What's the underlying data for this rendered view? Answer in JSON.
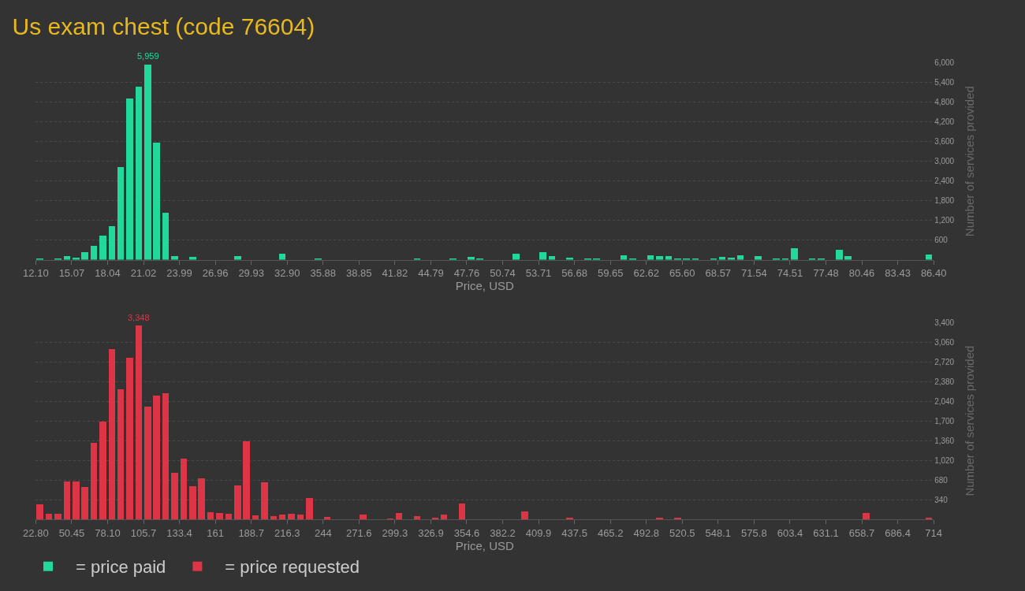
{
  "chart_data": [
    {
      "type": "histogram",
      "title": "Us exam chest (code 76604)",
      "xlabel": "Price, USD",
      "ylabel": "Number of services provided",
      "grid": "y",
      "legend": "bottom left",
      "bins": [
        12.1,
        12.843,
        13.586,
        14.329,
        15.072,
        15.815,
        16.558,
        17.301,
        18.044,
        18.787,
        19.53,
        20.273,
        21.016,
        21.759,
        22.502,
        23.245,
        23.988,
        24.731,
        25.474,
        26.217,
        26.96,
        27.703,
        28.446,
        29.189,
        29.932,
        30.675,
        31.418,
        32.161,
        32.904,
        33.647,
        34.39,
        35.133,
        35.876,
        36.619,
        37.362,
        38.105,
        38.848,
        39.591,
        40.334,
        41.077,
        41.82,
        42.563,
        43.306,
        44.049,
        44.792,
        45.535,
        46.278,
        47.021,
        47.764,
        48.507,
        49.25,
        49.993,
        50.736,
        51.479,
        52.222,
        52.965,
        53.708,
        54.451,
        55.194,
        55.937,
        56.68,
        57.423,
        58.166,
        58.909,
        59.652,
        60.395,
        61.138,
        61.881,
        62.624,
        63.367,
        64.11,
        64.853,
        65.596,
        66.339,
        67.082,
        67.825,
        68.568,
        69.311,
        70.054,
        70.797,
        71.54,
        72.283,
        73.026,
        73.769,
        74.512,
        75.255,
        75.998,
        76.741,
        77.484,
        78.227,
        78.97,
        79.713,
        80.456,
        81.199,
        81.942,
        82.685,
        83.428,
        84.171,
        84.914,
        85.657,
        86.4
      ],
      "series": [
        {
          "name": "= price paid",
          "color": "#20d99a",
          "values": [
            20,
            0,
            24,
            120,
            72,
            240,
            432,
            744,
            1032,
            2832,
            4920,
            5280,
            5959,
            3576,
            1440,
            120,
            0,
            96,
            0,
            0,
            0,
            0,
            120,
            0,
            0,
            0,
            0,
            192,
            0,
            0,
            0,
            48,
            0,
            0,
            0,
            0,
            0,
            0,
            0,
            0,
            0,
            0,
            24,
            0,
            0,
            0,
            24,
            0,
            96,
            24,
            0,
            0,
            0,
            192,
            0,
            0,
            240,
            120,
            0,
            72,
            0,
            24,
            24,
            0,
            0,
            144,
            24,
            0,
            144,
            120,
            120,
            24,
            48,
            24,
            0,
            48,
            96,
            72,
            144,
            0,
            120,
            0,
            24,
            48,
            360,
            0,
            48,
            24,
            0,
            312,
            120,
            0,
            0,
            0,
            0,
            0,
            0,
            0,
            0,
            168
          ],
          "value_labels": [
            null,
            null,
            null,
            null,
            null,
            null,
            null,
            null,
            null,
            null,
            null,
            null,
            "5,959",
            null,
            null,
            null,
            null,
            null,
            null,
            null,
            null,
            null,
            null,
            null,
            null,
            null,
            null,
            null,
            null,
            null,
            null,
            null,
            null,
            null,
            null,
            null,
            null,
            null,
            null,
            null,
            null,
            null,
            null,
            null,
            null,
            null,
            null,
            null,
            null,
            null,
            null,
            null,
            null,
            null,
            null,
            null,
            null,
            null,
            null,
            null,
            null,
            null,
            null,
            null,
            null,
            null,
            null,
            null,
            null,
            null,
            null,
            null,
            null,
            null,
            null,
            null,
            null,
            null,
            null,
            null,
            null,
            null,
            null,
            null,
            null,
            null,
            null,
            null,
            null,
            null,
            null,
            null,
            null,
            null,
            null,
            null,
            null,
            null,
            null,
            null
          ]
        }
      ],
      "xlim": [
        12.1,
        86.4
      ],
      "xticks": [
        {
          "value": 12.1,
          "label": "12.10"
        },
        {
          "value": 15.072,
          "label": "15.07"
        },
        {
          "value": 18.044,
          "label": "18.04"
        },
        {
          "value": 21.016,
          "label": "21.02"
        },
        {
          "value": 23.988,
          "label": "23.99"
        },
        {
          "value": 26.96,
          "label": "26.96"
        },
        {
          "value": 29.932,
          "label": "29.93"
        },
        {
          "value": 32.904,
          "label": "32.90"
        },
        {
          "value": 35.876,
          "label": "35.88"
        },
        {
          "value": 38.848,
          "label": "38.85"
        },
        {
          "value": 41.82,
          "label": "41.82"
        },
        {
          "value": 44.792,
          "label": "44.79"
        },
        {
          "value": 47.764,
          "label": "47.76"
        },
        {
          "value": 50.736,
          "label": "50.74"
        },
        {
          "value": 53.708,
          "label": "53.71"
        },
        {
          "value": 56.68,
          "label": "56.68"
        },
        {
          "value": 59.652,
          "label": "59.65"
        },
        {
          "value": 62.624,
          "label": "62.62"
        },
        {
          "value": 65.596,
          "label": "65.60"
        },
        {
          "value": 68.568,
          "label": "68.57"
        },
        {
          "value": 71.54,
          "label": "71.54"
        },
        {
          "value": 74.512,
          "label": "74.51"
        },
        {
          "value": 77.484,
          "label": "77.48"
        },
        {
          "value": 80.456,
          "label": "80.46"
        },
        {
          "value": 83.428,
          "label": "83.43"
        },
        {
          "value": 86.4,
          "label": "86.40"
        }
      ],
      "ylim": [
        0,
        6000
      ],
      "yticks": [
        600,
        {
          "value": 1200,
          "label": "1,200"
        },
        {
          "value": 1800,
          "label": "1,800"
        },
        {
          "value": 2400,
          "label": "2,400"
        },
        {
          "value": 3000,
          "label": "3,000"
        },
        {
          "value": 3600,
          "label": "3,600"
        },
        {
          "value": 4200,
          "label": "4,200"
        },
        {
          "value": 4800,
          "label": "4,800"
        },
        {
          "value": 5400,
          "label": "5,400"
        },
        {
          "value": 6000,
          "label": "6,000"
        }
      ]
    },
    {
      "type": "histogram",
      "xlabel": "Price, USD",
      "ylabel": "Number of services provided",
      "grid": "y",
      "legend": "bottom left",
      "bins": [
        22.8,
        29.712,
        36.624,
        43.536,
        50.448,
        57.36,
        64.272,
        71.184,
        78.096,
        85.008,
        91.92,
        98.832,
        105.744,
        112.656,
        119.568,
        126.48,
        133.392,
        140.304,
        147.216,
        154.128,
        161.04,
        167.952,
        174.864,
        181.776,
        188.688,
        195.6,
        202.512,
        209.424,
        216.336,
        223.248,
        230.16,
        237.072,
        243.984,
        250.896,
        257.808,
        264.72,
        271.632,
        278.544,
        285.456,
        292.368,
        299.28,
        306.192,
        313.104,
        320.016,
        326.928,
        333.84,
        340.752,
        347.664,
        354.576,
        361.488,
        368.4,
        375.312,
        382.224,
        389.136,
        396.048,
        402.96,
        409.872,
        416.784,
        423.696,
        430.608,
        437.52,
        444.432,
        451.344,
        458.256,
        465.168,
        472.08,
        478.992,
        485.904,
        492.816,
        499.728,
        506.64,
        513.552,
        520.464,
        527.376,
        534.288,
        541.2,
        548.112,
        555.024,
        561.936,
        568.848,
        575.76,
        582.672,
        589.584,
        596.496,
        603.408,
        610.32,
        617.232,
        624.144,
        631.056,
        637.968,
        644.88,
        651.792,
        658.704,
        665.616,
        672.528,
        679.44,
        686.352,
        693.264,
        700.176,
        707.088,
        714.0
      ],
      "series": [
        {
          "name": "= price requested",
          "color": "#dc3545",
          "values": [
            258,
            95,
            95,
            657,
            657,
            558,
            1319,
            1686,
            2937,
            2244,
            2788,
            3348,
            1945,
            2135,
            2176,
            802,
            1047,
            571,
            707,
            122,
            109,
            95,
            585,
            1346,
            68,
            639,
            54,
            82,
            95,
            82,
            367,
            0,
            41,
            0,
            0,
            0,
            82,
            0,
            0,
            10,
            109,
            0,
            54,
            0,
            27,
            82,
            0,
            272,
            0,
            0,
            0,
            0,
            0,
            0,
            136,
            0,
            0,
            0,
            0,
            14,
            0,
            0,
            0,
            0,
            0,
            0,
            0,
            0,
            0,
            14,
            0,
            27,
            0,
            0,
            0,
            0,
            0,
            0,
            0,
            0,
            0,
            0,
            0,
            0,
            0,
            0,
            0,
            0,
            0,
            0,
            0,
            0,
            109,
            0,
            0,
            0,
            0,
            0,
            0,
            14
          ],
          "value_labels": [
            null,
            null,
            null,
            null,
            null,
            null,
            null,
            null,
            null,
            null,
            null,
            "3,348",
            null,
            null,
            null,
            null,
            null,
            null,
            null,
            null,
            null,
            null,
            null,
            null,
            null,
            null,
            null,
            null,
            null,
            null,
            null,
            null,
            null,
            null,
            null,
            null,
            null,
            null,
            null,
            null,
            null,
            null,
            null,
            null,
            null,
            null,
            null,
            null,
            null,
            null,
            null,
            null,
            null,
            null,
            null,
            null,
            null,
            null,
            null,
            null,
            null,
            null,
            null,
            null,
            null,
            null,
            null,
            null,
            null,
            null,
            null,
            null,
            null,
            null,
            null,
            null,
            null,
            null,
            null,
            null,
            null,
            null,
            null,
            null,
            null,
            null,
            null,
            null,
            null,
            null,
            null,
            null,
            null,
            null,
            null,
            null,
            null,
            null,
            null,
            null
          ]
        }
      ],
      "xlim": [
        22.8,
        714.0
      ],
      "xticks": [
        {
          "value": 22.8,
          "label": "22.80"
        },
        {
          "value": 50.448,
          "label": "50.45"
        },
        {
          "value": 78.096,
          "label": "78.10"
        },
        {
          "value": 105.744,
          "label": "105.7"
        },
        {
          "value": 133.392,
          "label": "133.4"
        },
        {
          "value": 161.04,
          "label": "161"
        },
        {
          "value": 188.688,
          "label": "188.7"
        },
        {
          "value": 216.336,
          "label": "216.3"
        },
        {
          "value": 243.984,
          "label": "244"
        },
        {
          "value": 271.632,
          "label": "271.6"
        },
        {
          "value": 299.28,
          "label": "299.3"
        },
        {
          "value": 326.928,
          "label": "326.9"
        },
        {
          "value": 354.576,
          "label": "354.6"
        },
        {
          "value": 382.224,
          "label": "382.2"
        },
        {
          "value": 409.872,
          "label": "409.9"
        },
        {
          "value": 437.52,
          "label": "437.5"
        },
        {
          "value": 465.168,
          "label": "465.2"
        },
        {
          "value": 492.816,
          "label": "492.8"
        },
        {
          "value": 520.464,
          "label": "520.5"
        },
        {
          "value": 548.112,
          "label": "548.1"
        },
        {
          "value": 575.76,
          "label": "575.8"
        },
        {
          "value": 603.408,
          "label": "603.4"
        },
        {
          "value": 631.056,
          "label": "631.1"
        },
        {
          "value": 658.704,
          "label": "658.7"
        },
        {
          "value": 686.352,
          "label": "686.4"
        },
        {
          "value": 714.0,
          "label": "714"
        }
      ],
      "ylim": [
        0,
        3400
      ],
      "yticks": [
        340,
        680,
        {
          "value": 1020,
          "label": "1,020"
        },
        {
          "value": 1360,
          "label": "1,360"
        },
        {
          "value": 1700,
          "label": "1,700"
        },
        {
          "value": 2040,
          "label": "2,040"
        },
        {
          "value": 2380,
          "label": "2,380"
        },
        {
          "value": 2720,
          "label": "2,720"
        },
        {
          "value": 3060,
          "label": "3,060"
        },
        {
          "value": 3400,
          "label": "3,400"
        }
      ]
    }
  ]
}
